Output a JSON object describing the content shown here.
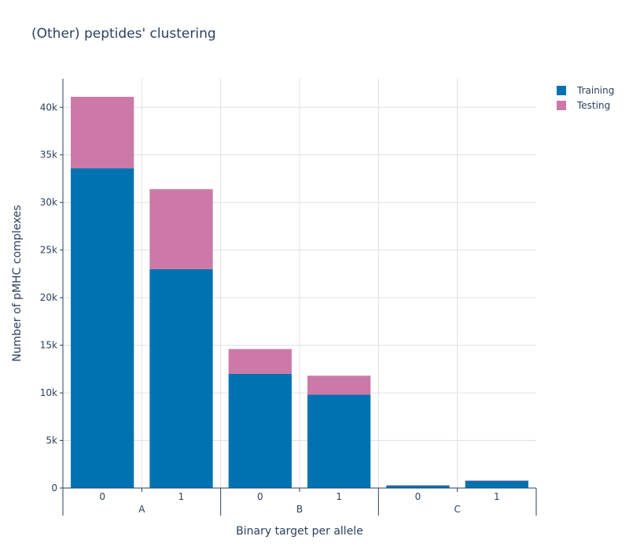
{
  "chart_data": {
    "type": "bar",
    "stacked": true,
    "title": "(Other) peptides' clustering",
    "xlabel": "Binary target per allele",
    "ylabel": "Number of pMHC complexes",
    "groups": [
      "A",
      "B",
      "C"
    ],
    "categories": [
      "0",
      "1",
      "0",
      "1",
      "0",
      "1"
    ],
    "category_groups": [
      "A",
      "A",
      "B",
      "B",
      "C",
      "C"
    ],
    "series": [
      {
        "name": "Training",
        "color": "#0072b2",
        "values": [
          33600,
          23000,
          12000,
          9800,
          250,
          750
        ]
      },
      {
        "name": "Testing",
        "color": "#cc79a7",
        "values": [
          7500,
          8400,
          2600,
          2000,
          50,
          50
        ]
      }
    ],
    "ylim": [
      0,
      43000
    ],
    "yticks": [
      0,
      5000,
      10000,
      15000,
      20000,
      25000,
      30000,
      35000,
      40000
    ],
    "ytick_labels": [
      "0",
      "5k",
      "10k",
      "15k",
      "20k",
      "25k",
      "30k",
      "35k",
      "40k"
    ],
    "grid": true,
    "legend_position": "top-right"
  }
}
